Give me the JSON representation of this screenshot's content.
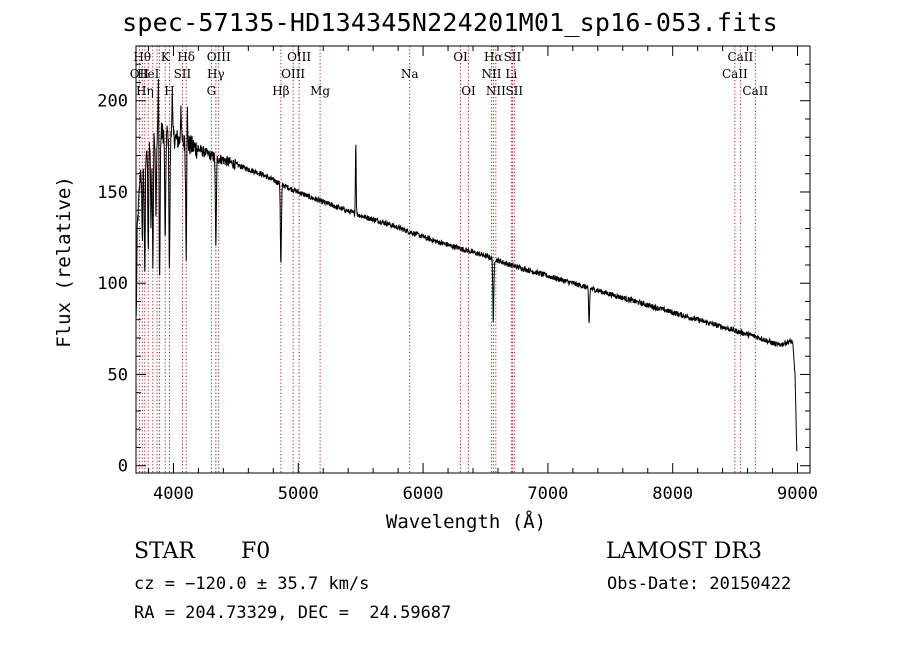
{
  "chart_data": {
    "type": "line",
    "title": "spec-57135-HD134345N224201M01_sp16-053.fits",
    "xlabel": "Wavelength (Å)",
    "ylabel": "Flux (relative)",
    "xlim": [
      3700,
      9100
    ],
    "ylim": [
      -4,
      230
    ],
    "xticks": [
      4000,
      5000,
      6000,
      7000,
      8000,
      9000
    ],
    "yticks": [
      0,
      50,
      100,
      150,
      200
    ],
    "continuum_points": [
      [
        3702,
        80
      ],
      [
        3710,
        130
      ],
      [
        3740,
        165
      ],
      [
        3800,
        178
      ],
      [
        3870,
        183
      ],
      [
        3950,
        182
      ],
      [
        4050,
        178
      ],
      [
        4150,
        175
      ],
      [
        4300,
        170
      ],
      [
        4500,
        165
      ],
      [
        4700,
        160
      ],
      [
        4900,
        153
      ],
      [
        5100,
        147
      ],
      [
        5300,
        142
      ],
      [
        5500,
        137
      ],
      [
        5700,
        133
      ],
      [
        5900,
        128
      ],
      [
        6100,
        123
      ],
      [
        6300,
        119
      ],
      [
        6500,
        115
      ],
      [
        6700,
        110
      ],
      [
        6900,
        106
      ],
      [
        7100,
        102
      ],
      [
        7300,
        98
      ],
      [
        7500,
        94
      ],
      [
        7700,
        90
      ],
      [
        7900,
        86
      ],
      [
        8100,
        82
      ],
      [
        8300,
        78
      ],
      [
        8500,
        74
      ],
      [
        8700,
        70
      ],
      [
        8850,
        66
      ],
      [
        8930,
        68
      ],
      [
        8960,
        68
      ],
      [
        8980,
        50
      ],
      [
        8990,
        20
      ],
      [
        8995,
        6
      ]
    ],
    "absorption_features": [
      [
        3750,
        -45
      ],
      [
        3770,
        -70
      ],
      [
        3798,
        -60
      ],
      [
        3820,
        -45
      ],
      [
        3835,
        -70
      ],
      [
        3860,
        -40
      ],
      [
        3889,
        -80
      ],
      [
        3934,
        -60
      ],
      [
        3968,
        -75
      ],
      [
        4102,
        -60
      ],
      [
        4340,
        -50
      ],
      [
        4861,
        -45
      ],
      [
        6563,
        -35
      ],
      [
        7330,
        -20
      ]
    ],
    "emission_features": [
      [
        3880,
        30
      ],
      [
        3990,
        25
      ],
      [
        4060,
        22
      ],
      [
        4110,
        25
      ],
      [
        5461,
        40
      ]
    ],
    "lines": [
      {
        "wave": 3727,
        "label": "OII",
        "row": 2
      },
      {
        "wave": 3750,
        "label": "Hθ",
        "row": 1
      },
      {
        "wave": 3771,
        "label": "Hη",
        "row": 3
      },
      {
        "wave": 3798,
        "label": "HeI",
        "row": 2
      },
      {
        "wave": 3835,
        "label": "",
        "row": 0
      },
      {
        "wave": 3869,
        "label": "",
        "row": 0
      },
      {
        "wave": 3889,
        "label": "",
        "row": 0
      },
      {
        "wave": 3934,
        "label": "K",
        "row": 1
      },
      {
        "wave": 3968,
        "label": "H",
        "row": 3
      },
      {
        "wave": 4072,
        "label": "SII",
        "row": 2
      },
      {
        "wave": 4102,
        "label": "Hδ",
        "row": 1
      },
      {
        "wave": 4304,
        "label": "G",
        "row": 3
      },
      {
        "wave": 4340,
        "label": "Hγ",
        "row": 2
      },
      {
        "wave": 4363,
        "label": "OIII",
        "row": 1
      },
      {
        "wave": 4861,
        "label": "Hβ",
        "row": 3
      },
      {
        "wave": 4959,
        "label": "OIII",
        "row": 2
      },
      {
        "wave": 5007,
        "label": "OIII",
        "row": 1
      },
      {
        "wave": 5175,
        "label": "Mg",
        "row": 3
      },
      {
        "wave": 5893,
        "label": "Na",
        "row": 2
      },
      {
        "wave": 6300,
        "label": "OI",
        "row": 1
      },
      {
        "wave": 6364,
        "label": "OI",
        "row": 3
      },
      {
        "wave": 6548,
        "label": "NII",
        "row": 2
      },
      {
        "wave": 6563,
        "label": "Hα",
        "row": 1
      },
      {
        "wave": 6583,
        "label": "NII",
        "row": 3
      },
      {
        "wave": 6707,
        "label": "Li",
        "row": 2
      },
      {
        "wave": 6716,
        "label": "SII",
        "row": 1
      },
      {
        "wave": 6731,
        "label": "SII",
        "row": 3
      },
      {
        "wave": 8498,
        "label": "CaII",
        "row": 2
      },
      {
        "wave": 8542,
        "label": "CaII",
        "row": 1
      },
      {
        "wave": 8662,
        "label": "CaII",
        "row": 3
      }
    ]
  },
  "info": {
    "object_class": "STAR",
    "subclass": "F0",
    "survey": "LAMOST DR3",
    "redshift_line": "cz = −120.0 ± 35.7 km/s",
    "obs_date_line": "Obs-Date: 20150422",
    "coords_line": "RA = 204.73329, DEC =  24.59687"
  },
  "colors": {
    "line_marker": "#b00000",
    "spectrum": "#000000"
  }
}
